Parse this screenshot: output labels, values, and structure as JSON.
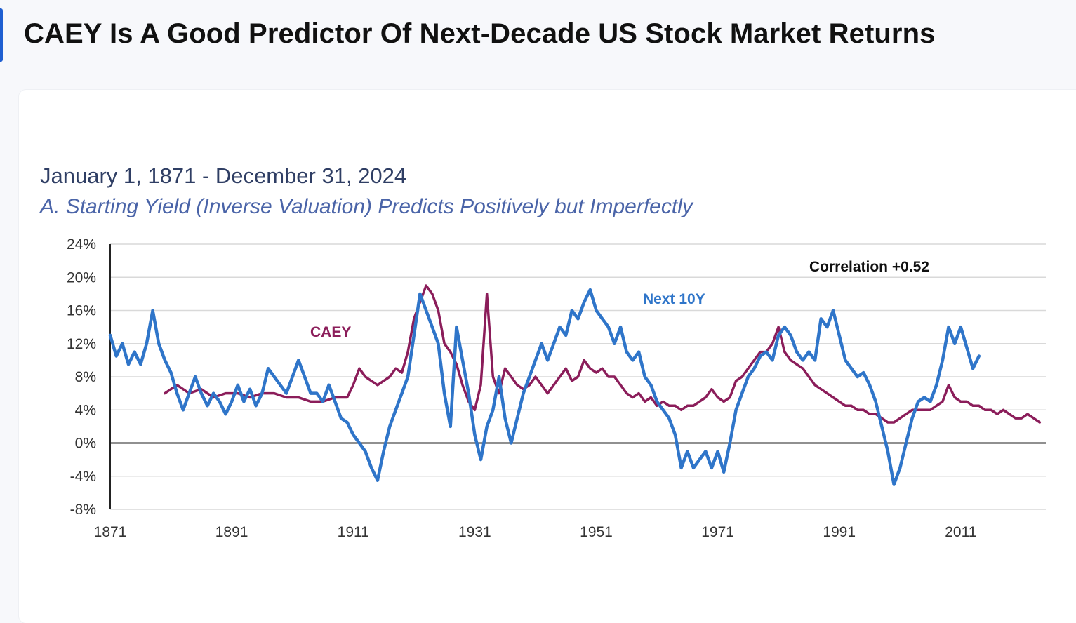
{
  "page": {
    "heading": "CAEY Is A Good Predictor Of Next-Decade US Stock Market Returns"
  },
  "colors": {
    "accent": "#1f5fd1",
    "next10y": "#2f75c9",
    "caey": "#8b1d5a",
    "axis": "#222222",
    "grid": "#d9d9d9"
  },
  "chart_data": {
    "type": "line",
    "title": "January 1, 1871 - December 31, 2024",
    "subtitle": "A. Starting Yield (Inverse Valuation) Predicts Positively but Imperfectly",
    "xlabel": "",
    "ylabel": "",
    "xlim": [
      1871,
      2025
    ],
    "ylim": [
      -8,
      24
    ],
    "x_ticks": [
      "1871",
      "1891",
      "1911",
      "1931",
      "1951",
      "1971",
      "1991",
      "2011"
    ],
    "y_ticks": [
      "24%",
      "20%",
      "16%",
      "12%",
      "8%",
      "4%",
      "0%",
      "-4%",
      "-8%"
    ],
    "grid": "horizontal",
    "annotations": [
      "Correlation +0.52"
    ],
    "series": [
      {
        "name": "Next 10Y",
        "color": "#2f75c9",
        "points": [
          [
            1871,
            13
          ],
          [
            1872,
            10.5
          ],
          [
            1873,
            12
          ],
          [
            1874,
            9.5
          ],
          [
            1875,
            11
          ],
          [
            1876,
            9.5
          ],
          [
            1877,
            12
          ],
          [
            1878,
            16
          ],
          [
            1879,
            12
          ],
          [
            1880,
            10
          ],
          [
            1881,
            8.5
          ],
          [
            1882,
            6
          ],
          [
            1883,
            4
          ],
          [
            1884,
            6
          ],
          [
            1885,
            8
          ],
          [
            1886,
            6
          ],
          [
            1887,
            4.5
          ],
          [
            1888,
            6
          ],
          [
            1889,
            5
          ],
          [
            1890,
            3.5
          ],
          [
            1891,
            5
          ],
          [
            1892,
            7
          ],
          [
            1893,
            5
          ],
          [
            1894,
            6.5
          ],
          [
            1895,
            4.5
          ],
          [
            1896,
            6
          ],
          [
            1897,
            9
          ],
          [
            1898,
            8
          ],
          [
            1899,
            7
          ],
          [
            1900,
            6
          ],
          [
            1901,
            8
          ],
          [
            1902,
            10
          ],
          [
            1903,
            8
          ],
          [
            1904,
            6
          ],
          [
            1905,
            6
          ],
          [
            1906,
            5
          ],
          [
            1907,
            7
          ],
          [
            1908,
            5
          ],
          [
            1909,
            3
          ],
          [
            1910,
            2.5
          ],
          [
            1911,
            1
          ],
          [
            1912,
            0
          ],
          [
            1913,
            -1
          ],
          [
            1914,
            -3
          ],
          [
            1915,
            -4.5
          ],
          [
            1916,
            -1
          ],
          [
            1917,
            2
          ],
          [
            1918,
            4
          ],
          [
            1919,
            6
          ],
          [
            1920,
            8
          ],
          [
            1921,
            13
          ],
          [
            1922,
            18
          ],
          [
            1923,
            16
          ],
          [
            1924,
            14
          ],
          [
            1925,
            12
          ],
          [
            1926,
            6
          ],
          [
            1927,
            2
          ],
          [
            1928,
            14
          ],
          [
            1929,
            10
          ],
          [
            1930,
            6
          ],
          [
            1931,
            1
          ],
          [
            1932,
            -2
          ],
          [
            1933,
            2
          ],
          [
            1934,
            4
          ],
          [
            1935,
            8
          ],
          [
            1936,
            3
          ],
          [
            1937,
            0
          ],
          [
            1938,
            3
          ],
          [
            1939,
            6
          ],
          [
            1940,
            8
          ],
          [
            1941,
            10
          ],
          [
            1942,
            12
          ],
          [
            1943,
            10
          ],
          [
            1944,
            12
          ],
          [
            1945,
            14
          ],
          [
            1946,
            13
          ],
          [
            1947,
            16
          ],
          [
            1948,
            15
          ],
          [
            1949,
            17
          ],
          [
            1950,
            18.5
          ],
          [
            1951,
            16
          ],
          [
            1952,
            15
          ],
          [
            1953,
            14
          ],
          [
            1954,
            12
          ],
          [
            1955,
            14
          ],
          [
            1956,
            11
          ],
          [
            1957,
            10
          ],
          [
            1958,
            11
          ],
          [
            1959,
            8
          ],
          [
            1960,
            7
          ],
          [
            1961,
            5
          ],
          [
            1962,
            4
          ],
          [
            1963,
            3
          ],
          [
            1964,
            1
          ],
          [
            1965,
            -3
          ],
          [
            1966,
            -1
          ],
          [
            1967,
            -3
          ],
          [
            1968,
            -2
          ],
          [
            1969,
            -1
          ],
          [
            1970,
            -3
          ],
          [
            1971,
            -1
          ],
          [
            1972,
            -3.5
          ],
          [
            1973,
            0
          ],
          [
            1974,
            4
          ],
          [
            1975,
            6
          ],
          [
            1976,
            8
          ],
          [
            1977,
            9
          ],
          [
            1978,
            10.5
          ],
          [
            1979,
            11
          ],
          [
            1980,
            10
          ],
          [
            1981,
            13
          ],
          [
            1982,
            14
          ],
          [
            1983,
            13
          ],
          [
            1984,
            11
          ],
          [
            1985,
            10
          ],
          [
            1986,
            11
          ],
          [
            1987,
            10
          ],
          [
            1988,
            15
          ],
          [
            1989,
            14
          ],
          [
            1990,
            16
          ],
          [
            1991,
            13
          ],
          [
            1992,
            10
          ],
          [
            1993,
            9
          ],
          [
            1994,
            8
          ],
          [
            1995,
            8.5
          ],
          [
            1996,
            7
          ],
          [
            1997,
            5
          ],
          [
            1998,
            2
          ],
          [
            1999,
            -1
          ],
          [
            2000,
            -5
          ],
          [
            2001,
            -3
          ],
          [
            2002,
            0
          ],
          [
            2003,
            3
          ],
          [
            2004,
            5
          ],
          [
            2005,
            5.5
          ],
          [
            2006,
            5
          ],
          [
            2007,
            7
          ],
          [
            2008,
            10
          ],
          [
            2009,
            14
          ],
          [
            2010,
            12
          ],
          [
            2011,
            14
          ],
          [
            2012,
            11.5
          ],
          [
            2013,
            9
          ],
          [
            2014,
            10.5
          ]
        ]
      },
      {
        "name": "CAEY",
        "color": "#8b1d5a",
        "points": [
          [
            1880,
            6
          ],
          [
            1882,
            7
          ],
          [
            1884,
            6
          ],
          [
            1886,
            6.5
          ],
          [
            1888,
            5.5
          ],
          [
            1890,
            6
          ],
          [
            1892,
            6
          ],
          [
            1894,
            5.5
          ],
          [
            1896,
            6
          ],
          [
            1898,
            6
          ],
          [
            1900,
            5.5
          ],
          [
            1902,
            5.5
          ],
          [
            1904,
            5
          ],
          [
            1906,
            5
          ],
          [
            1908,
            5.5
          ],
          [
            1910,
            5.5
          ],
          [
            1911,
            7
          ],
          [
            1912,
            9
          ],
          [
            1913,
            8
          ],
          [
            1914,
            7.5
          ],
          [
            1915,
            7
          ],
          [
            1916,
            7.5
          ],
          [
            1917,
            8
          ],
          [
            1918,
            9
          ],
          [
            1919,
            8.5
          ],
          [
            1920,
            11
          ],
          [
            1921,
            15
          ],
          [
            1922,
            17
          ],
          [
            1923,
            19
          ],
          [
            1924,
            18
          ],
          [
            1925,
            16
          ],
          [
            1926,
            12
          ],
          [
            1927,
            11
          ],
          [
            1928,
            9.5
          ],
          [
            1929,
            7
          ],
          [
            1930,
            5
          ],
          [
            1931,
            4
          ],
          [
            1932,
            7
          ],
          [
            1933,
            18
          ],
          [
            1934,
            8
          ],
          [
            1935,
            6
          ],
          [
            1936,
            9
          ],
          [
            1937,
            8
          ],
          [
            1938,
            7
          ],
          [
            1939,
            6.5
          ],
          [
            1940,
            7
          ],
          [
            1941,
            8
          ],
          [
            1942,
            7
          ],
          [
            1943,
            6
          ],
          [
            1944,
            7
          ],
          [
            1945,
            8
          ],
          [
            1946,
            9
          ],
          [
            1947,
            7.5
          ],
          [
            1948,
            8
          ],
          [
            1949,
            10
          ],
          [
            1950,
            9
          ],
          [
            1951,
            8.5
          ],
          [
            1952,
            9
          ],
          [
            1953,
            8
          ],
          [
            1954,
            8
          ],
          [
            1955,
            7
          ],
          [
            1956,
            6
          ],
          [
            1957,
            5.5
          ],
          [
            1958,
            6
          ],
          [
            1959,
            5
          ],
          [
            1960,
            5.5
          ],
          [
            1961,
            4.5
          ],
          [
            1962,
            5
          ],
          [
            1963,
            4.5
          ],
          [
            1964,
            4.5
          ],
          [
            1965,
            4
          ],
          [
            1966,
            4.5
          ],
          [
            1967,
            4.5
          ],
          [
            1968,
            5
          ],
          [
            1969,
            5.5
          ],
          [
            1970,
            6.5
          ],
          [
            1971,
            5.5
          ],
          [
            1972,
            5
          ],
          [
            1973,
            5.5
          ],
          [
            1974,
            7.5
          ],
          [
            1975,
            8
          ],
          [
            1976,
            9
          ],
          [
            1977,
            10
          ],
          [
            1978,
            11
          ],
          [
            1979,
            11
          ],
          [
            1980,
            12
          ],
          [
            1981,
            14
          ],
          [
            1982,
            11
          ],
          [
            1983,
            10
          ],
          [
            1984,
            9.5
          ],
          [
            1985,
            9
          ],
          [
            1986,
            8
          ],
          [
            1987,
            7
          ],
          [
            1988,
            6.5
          ],
          [
            1989,
            6
          ],
          [
            1990,
            5.5
          ],
          [
            1991,
            5
          ],
          [
            1992,
            4.5
          ],
          [
            1993,
            4.5
          ],
          [
            1994,
            4
          ],
          [
            1995,
            4
          ],
          [
            1996,
            3.5
          ],
          [
            1997,
            3.5
          ],
          [
            1998,
            3
          ],
          [
            1999,
            2.5
          ],
          [
            2000,
            2.5
          ],
          [
            2001,
            3
          ],
          [
            2002,
            3.5
          ],
          [
            2003,
            4
          ],
          [
            2004,
            4
          ],
          [
            2005,
            4
          ],
          [
            2006,
            4
          ],
          [
            2007,
            4.5
          ],
          [
            2008,
            5
          ],
          [
            2009,
            7
          ],
          [
            2010,
            5.5
          ],
          [
            2011,
            5
          ],
          [
            2012,
            5
          ],
          [
            2013,
            4.5
          ],
          [
            2014,
            4.5
          ],
          [
            2015,
            4
          ],
          [
            2016,
            4
          ],
          [
            2017,
            3.5
          ],
          [
            2018,
            4
          ],
          [
            2019,
            3.5
          ],
          [
            2020,
            3
          ],
          [
            2021,
            3
          ],
          [
            2022,
            3.5
          ],
          [
            2023,
            3
          ],
          [
            2024,
            2.5
          ]
        ]
      }
    ],
    "labels": {
      "next10y": "Next 10Y",
      "caey": "CAEY",
      "correlation": "Correlation +0.52"
    }
  }
}
